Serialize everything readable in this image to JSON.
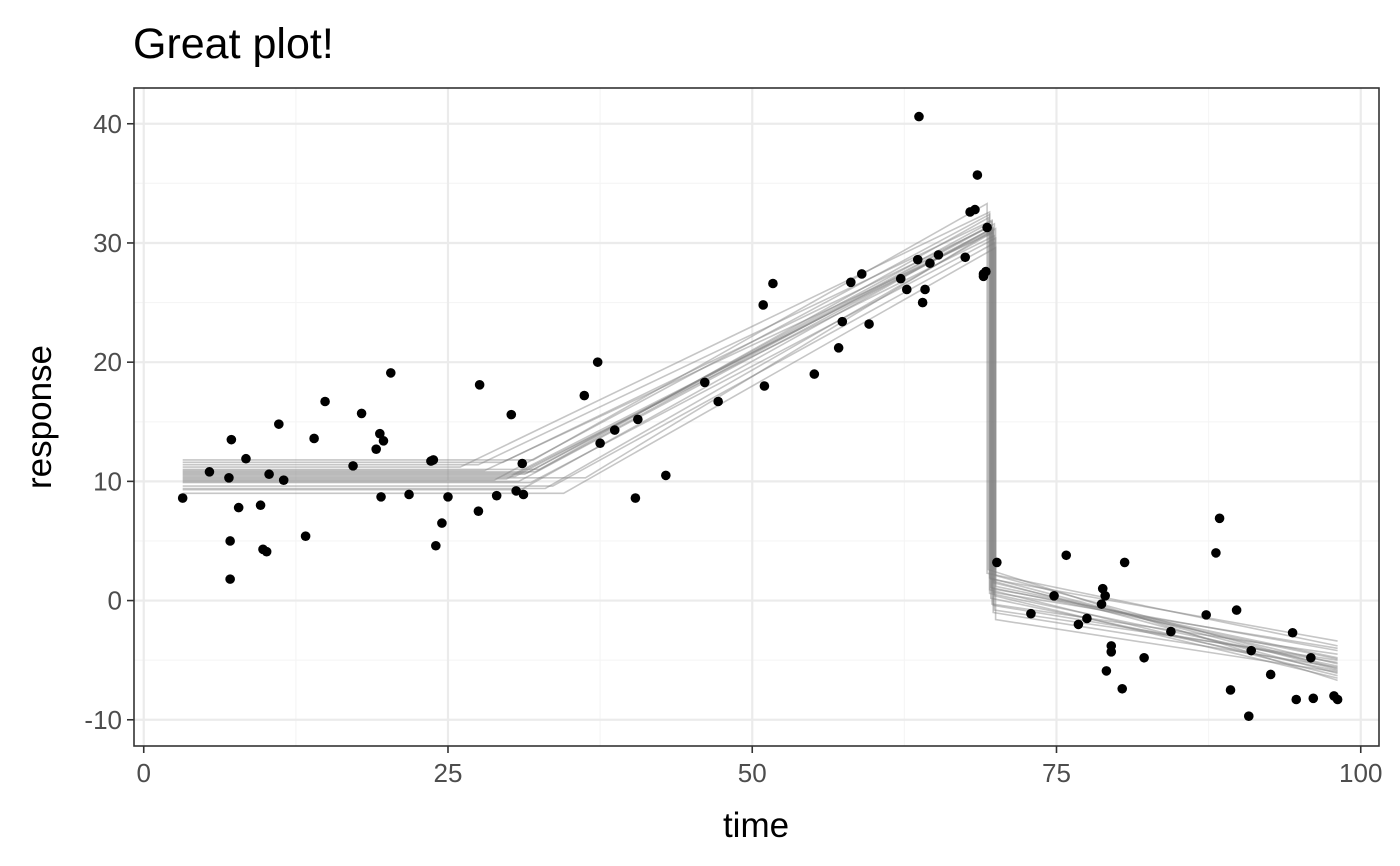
{
  "chart_data": {
    "type": "scatter",
    "title": "Great plot!",
    "xlabel": "time",
    "ylabel": "response",
    "xlim": [
      -0.8,
      101.5
    ],
    "ylim": [
      -12.2,
      43.0
    ],
    "x_ticks": [
      0,
      25,
      50,
      75,
      100
    ],
    "x_tick_labels": [
      "0",
      "25",
      "50",
      "75",
      "100"
    ],
    "y_ticks": [
      -10,
      0,
      10,
      20,
      30,
      40
    ],
    "y_tick_labels": [
      "-10",
      "0",
      "10",
      "20",
      "30",
      "40"
    ],
    "x_minor_ticks": [
      12.5,
      37.5,
      62.5,
      87.5
    ],
    "y_minor_ticks": [
      -5,
      5,
      15,
      25,
      35
    ],
    "grid": true,
    "theme": "bw",
    "colors": {
      "points": "#000000",
      "fit_lines": "#808080"
    },
    "points": [
      {
        "x": 3.2,
        "y": 8.6
      },
      {
        "x": 5.4,
        "y": 10.8
      },
      {
        "x": 7.0,
        "y": 10.3
      },
      {
        "x": 7.2,
        "y": 13.5
      },
      {
        "x": 7.1,
        "y": 5.0
      },
      {
        "x": 7.1,
        "y": 1.8
      },
      {
        "x": 7.8,
        "y": 7.8
      },
      {
        "x": 8.4,
        "y": 11.9
      },
      {
        "x": 9.6,
        "y": 8.0
      },
      {
        "x": 9.8,
        "y": 4.3
      },
      {
        "x": 10.1,
        "y": 4.1
      },
      {
        "x": 10.3,
        "y": 10.6
      },
      {
        "x": 11.1,
        "y": 14.8
      },
      {
        "x": 11.5,
        "y": 10.1
      },
      {
        "x": 13.3,
        "y": 5.4
      },
      {
        "x": 14.0,
        "y": 13.6
      },
      {
        "x": 14.9,
        "y": 16.7
      },
      {
        "x": 17.2,
        "y": 11.3
      },
      {
        "x": 17.9,
        "y": 15.7
      },
      {
        "x": 19.1,
        "y": 12.7
      },
      {
        "x": 19.4,
        "y": 14.0
      },
      {
        "x": 19.7,
        "y": 13.4
      },
      {
        "x": 19.5,
        "y": 8.7
      },
      {
        "x": 20.3,
        "y": 19.1
      },
      {
        "x": 21.8,
        "y": 8.9
      },
      {
        "x": 23.6,
        "y": 11.7
      },
      {
        "x": 23.8,
        "y": 11.8
      },
      {
        "x": 24.0,
        "y": 4.6
      },
      {
        "x": 24.5,
        "y": 6.5
      },
      {
        "x": 25.0,
        "y": 8.7
      },
      {
        "x": 27.5,
        "y": 7.5
      },
      {
        "x": 27.6,
        "y": 18.1
      },
      {
        "x": 29.0,
        "y": 8.8
      },
      {
        "x": 30.2,
        "y": 15.6
      },
      {
        "x": 30.6,
        "y": 9.2
      },
      {
        "x": 31.1,
        "y": 11.5
      },
      {
        "x": 31.2,
        "y": 8.9
      },
      {
        "x": 36.2,
        "y": 17.2
      },
      {
        "x": 37.3,
        "y": 20.0
      },
      {
        "x": 37.5,
        "y": 13.2
      },
      {
        "x": 38.7,
        "y": 14.3
      },
      {
        "x": 40.4,
        "y": 8.6
      },
      {
        "x": 40.6,
        "y": 15.2
      },
      {
        "x": 42.9,
        "y": 10.5
      },
      {
        "x": 46.1,
        "y": 18.3
      },
      {
        "x": 47.2,
        "y": 16.7
      },
      {
        "x": 50.9,
        "y": 24.8
      },
      {
        "x": 51.0,
        "y": 18.0
      },
      {
        "x": 51.7,
        "y": 26.6
      },
      {
        "x": 55.1,
        "y": 19.0
      },
      {
        "x": 57.1,
        "y": 21.2
      },
      {
        "x": 57.4,
        "y": 23.4
      },
      {
        "x": 58.1,
        "y": 26.7
      },
      {
        "x": 59.0,
        "y": 27.4
      },
      {
        "x": 59.6,
        "y": 23.2
      },
      {
        "x": 62.2,
        "y": 27.0
      },
      {
        "x": 62.7,
        "y": 26.1
      },
      {
        "x": 63.6,
        "y": 28.6
      },
      {
        "x": 63.7,
        "y": 40.6
      },
      {
        "x": 64.0,
        "y": 25.0
      },
      {
        "x": 64.2,
        "y": 26.1
      },
      {
        "x": 64.6,
        "y": 28.3
      },
      {
        "x": 65.3,
        "y": 29.0
      },
      {
        "x": 67.5,
        "y": 28.8
      },
      {
        "x": 67.9,
        "y": 32.6
      },
      {
        "x": 68.3,
        "y": 32.8
      },
      {
        "x": 68.5,
        "y": 35.7
      },
      {
        "x": 69.0,
        "y": 27.4
      },
      {
        "x": 69.0,
        "y": 27.2
      },
      {
        "x": 69.2,
        "y": 27.6
      },
      {
        "x": 69.3,
        "y": 31.3
      },
      {
        "x": 70.1,
        "y": 3.2
      },
      {
        "x": 72.9,
        "y": -1.1
      },
      {
        "x": 74.8,
        "y": 0.4
      },
      {
        "x": 75.8,
        "y": 3.8
      },
      {
        "x": 76.8,
        "y": -2.0
      },
      {
        "x": 77.5,
        "y": -1.5
      },
      {
        "x": 78.7,
        "y": -0.3
      },
      {
        "x": 78.8,
        "y": 1.0
      },
      {
        "x": 79.0,
        "y": 0.4
      },
      {
        "x": 79.1,
        "y": -5.9
      },
      {
        "x": 79.5,
        "y": -4.3
      },
      {
        "x": 79.5,
        "y": -3.8
      },
      {
        "x": 80.4,
        "y": -7.4
      },
      {
        "x": 80.6,
        "y": 3.2
      },
      {
        "x": 82.2,
        "y": -4.8
      },
      {
        "x": 84.4,
        "y": -2.6
      },
      {
        "x": 87.3,
        "y": -1.2
      },
      {
        "x": 88.1,
        "y": 4.0
      },
      {
        "x": 88.4,
        "y": 6.9
      },
      {
        "x": 89.3,
        "y": -7.5
      },
      {
        "x": 89.8,
        "y": -0.8
      },
      {
        "x": 91.0,
        "y": -4.2
      },
      {
        "x": 90.8,
        "y": -9.7
      },
      {
        "x": 92.6,
        "y": -6.2
      },
      {
        "x": 94.4,
        "y": -2.7
      },
      {
        "x": 94.7,
        "y": -8.3
      },
      {
        "x": 95.9,
        "y": -4.8
      },
      {
        "x": 96.1,
        "y": -8.2
      },
      {
        "x": 97.8,
        "y": -8.0
      },
      {
        "x": 98.1,
        "y": -8.3
      }
    ],
    "fit_lines": [
      {
        "cp1": 36.3,
        "cp2": 70.0,
        "s1": 10.3,
        "y2a": 10.3,
        "y2b": 31.2,
        "y3a": 2.1,
        "y3b": -5.7
      },
      {
        "cp1": 26.0,
        "cp2": 69.5,
        "s1": 11.2,
        "y2a": 11.2,
        "y2b": 32.6,
        "y3a": 0.6,
        "y3b": -5.5
      },
      {
        "cp1": 29.5,
        "cp2": 69.6,
        "s1": 11.6,
        "y2a": 11.6,
        "y2b": 31.4,
        "y3a": 1.8,
        "y3b": -3.4
      },
      {
        "cp1": 31.0,
        "cp2": 69.8,
        "s1": 9.3,
        "y2a": 9.3,
        "y2b": 31.3,
        "y3a": -0.4,
        "y3b": -5.2
      },
      {
        "cp1": 32.2,
        "cp2": 69.9,
        "s1": 10.8,
        "y2a": 10.8,
        "y2b": 31.6,
        "y3a": 1.6,
        "y3b": -6.1
      },
      {
        "cp1": 28.0,
        "cp2": 69.6,
        "s1": 10.9,
        "y2a": 10.9,
        "y2b": 30.8,
        "y3a": 0.2,
        "y3b": -5.9
      },
      {
        "cp1": 31.8,
        "cp2": 70.0,
        "s1": 9.9,
        "y2a": 9.9,
        "y2b": 30.4,
        "y3a": 1.2,
        "y3b": -4.8
      },
      {
        "cp1": 32.5,
        "cp2": 69.4,
        "s1": 11.0,
        "y2a": 11.0,
        "y2b": 32.1,
        "y3a": 2.6,
        "y3b": -6.7
      },
      {
        "cp1": 30.2,
        "cp2": 69.7,
        "s1": 10.5,
        "y2a": 10.5,
        "y2b": 31.0,
        "y3a": 1.0,
        "y3b": -4.2
      },
      {
        "cp1": 33.6,
        "cp2": 69.9,
        "s1": 9.6,
        "y2a": 9.6,
        "y2b": 30.0,
        "y3a": -0.8,
        "y3b": -5.0
      },
      {
        "cp1": 28.8,
        "cp2": 69.5,
        "s1": 10.1,
        "y2a": 10.1,
        "y2b": 32.4,
        "y3a": 0.9,
        "y3b": -6.3
      },
      {
        "cp1": 31.5,
        "cp2": 69.7,
        "s1": 10.7,
        "y2a": 10.7,
        "y2b": 31.8,
        "y3a": -0.3,
        "y3b": -4.5
      },
      {
        "cp1": 34.5,
        "cp2": 70.0,
        "s1": 9.0,
        "y2a": 9.0,
        "y2b": 29.6,
        "y3a": -1.6,
        "y3b": -6.0
      },
      {
        "cp1": 30.8,
        "cp2": 69.8,
        "s1": 10.0,
        "y2a": 10.0,
        "y2b": 31.2,
        "y3a": 1.5,
        "y3b": -5.3
      },
      {
        "cp1": 32.0,
        "cp2": 69.3,
        "s1": 11.8,
        "y2a": 11.8,
        "y2b": 33.3,
        "y3a": 2.3,
        "y3b": -3.8
      },
      {
        "cp1": 29.8,
        "cp2": 69.9,
        "s1": 10.2,
        "y2a": 10.2,
        "y2b": 30.6,
        "y3a": 0.4,
        "y3b": -6.5
      },
      {
        "cp1": 31.3,
        "cp2": 69.6,
        "s1": 10.6,
        "y2a": 10.6,
        "y2b": 31.5,
        "y3a": 1.1,
        "y3b": -4.9
      },
      {
        "cp1": 33.0,
        "cp2": 69.8,
        "s1": 9.4,
        "y2a": 9.4,
        "y2b": 30.9,
        "y3a": -1.0,
        "y3b": -5.6
      },
      {
        "cp1": 27.5,
        "cp2": 69.7,
        "s1": 11.4,
        "y2a": 11.4,
        "y2b": 31.9,
        "y3a": 0.7,
        "y3b": -4.0
      },
      {
        "cp1": 30.5,
        "cp2": 69.5,
        "s1": 10.4,
        "y2a": 10.4,
        "y2b": 31.1,
        "y3a": 1.9,
        "y3b": -5.8
      }
    ]
  }
}
